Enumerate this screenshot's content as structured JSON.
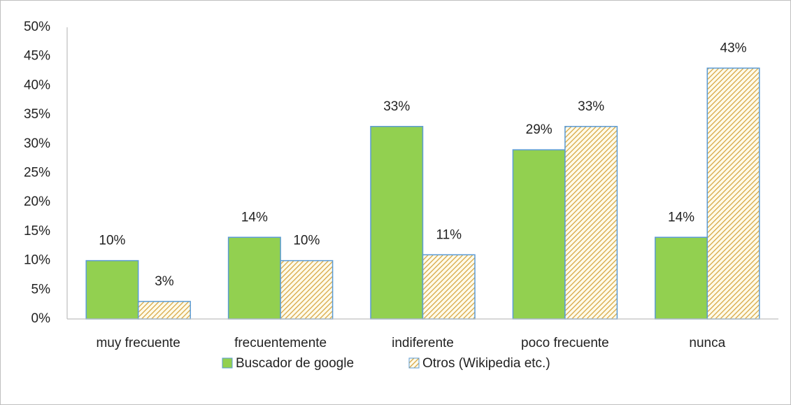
{
  "chart_data": {
    "type": "bar",
    "categories": [
      "muy frecuente",
      "frecuentemente",
      "indiferente",
      "poco frecuente",
      "nunca"
    ],
    "series": [
      {
        "name": "Buscador de google",
        "color": "#92d050",
        "values": [
          10,
          14,
          33,
          29,
          14
        ],
        "value_labels": [
          "10%",
          "14%",
          "33%",
          "29%",
          "14%"
        ]
      },
      {
        "name": "Otros (Wikipedia etc.)",
        "color": "#d4a23a",
        "pattern": "hatch",
        "values": [
          3,
          10,
          11,
          33,
          43
        ],
        "value_labels": [
          "3%",
          "10%",
          "11%",
          "33%",
          "43%"
        ]
      }
    ],
    "ylim": [
      0,
      50
    ],
    "yticks": [
      {
        "value": 0,
        "label": "0%"
      },
      {
        "value": 5,
        "label": "5%"
      },
      {
        "value": 10,
        "label": "10%"
      },
      {
        "value": 15,
        "label": "15%"
      },
      {
        "value": 20,
        "label": "20%"
      },
      {
        "value": 25,
        "label": "25%"
      },
      {
        "value": 30,
        "label": "30%"
      },
      {
        "value": 35,
        "label": "35%"
      },
      {
        "value": 40,
        "label": "40%"
      },
      {
        "value": 45,
        "label": "45%"
      },
      {
        "value": 50,
        "label": "50%"
      }
    ],
    "grid": false,
    "legend": "bottom"
  }
}
